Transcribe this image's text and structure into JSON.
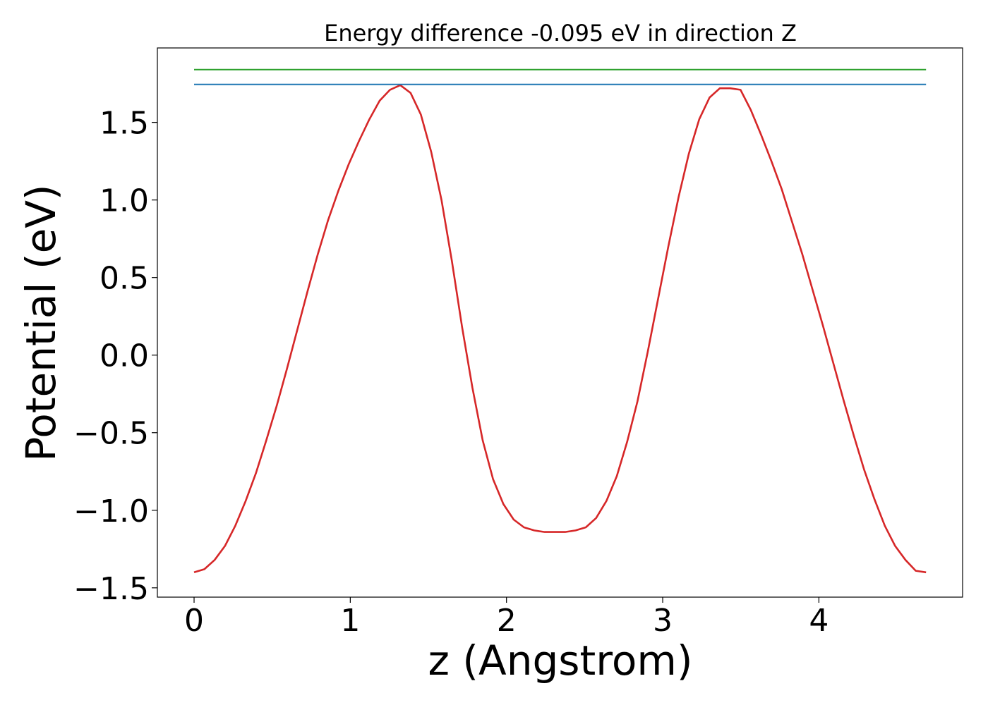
{
  "chart_data": {
    "type": "line",
    "title": "Energy difference -0.095 eV in direction Z",
    "xlabel": "z (Angstrom)",
    "ylabel": "Potential (eV)",
    "xlim": [
      -0.235,
      4.92
    ],
    "ylim": [
      -1.56,
      1.98
    ],
    "xticks": [
      0,
      1,
      2,
      3,
      4
    ],
    "xtick_labels": [
      "0",
      "1",
      "2",
      "3",
      "4"
    ],
    "yticks": [
      -1.5,
      -1.0,
      -0.5,
      0.0,
      0.5,
      1.0,
      1.5
    ],
    "ytick_labels": [
      "−1.5",
      "−1.0",
      "−0.5",
      "0.0",
      "0.5",
      "1.0",
      "1.5"
    ],
    "grid": false,
    "legend": "none",
    "series": [
      {
        "color": "#d62728",
        "x": [
          0.0,
          0.066,
          0.132,
          0.198,
          0.264,
          0.33,
          0.396,
          0.462,
          0.528,
          0.594,
          0.66,
          0.726,
          0.792,
          0.858,
          0.924,
          0.99,
          1.056,
          1.122,
          1.188,
          1.254,
          1.32,
          1.386,
          1.452,
          1.518,
          1.584,
          1.65,
          1.716,
          1.782,
          1.848,
          1.914,
          1.98,
          2.046,
          2.112,
          2.178,
          2.244,
          2.31,
          2.376,
          2.442,
          2.508,
          2.574,
          2.64,
          2.706,
          2.772,
          2.838,
          2.904,
          2.97,
          3.036,
          3.102,
          3.168,
          3.234,
          3.3,
          3.366,
          3.432,
          3.498,
          3.564,
          3.63,
          3.696,
          3.762,
          3.828,
          3.894,
          3.96,
          4.026,
          4.092,
          4.158,
          4.224,
          4.29,
          4.356,
          4.422,
          4.488,
          4.554,
          4.62,
          4.686
        ],
        "y": [
          -1.4,
          -1.38,
          -1.32,
          -1.23,
          -1.1,
          -0.94,
          -0.76,
          -0.55,
          -0.33,
          -0.09,
          0.16,
          0.41,
          0.65,
          0.87,
          1.06,
          1.23,
          1.38,
          1.52,
          1.64,
          1.71,
          1.74,
          1.69,
          1.55,
          1.31,
          1.0,
          0.61,
          0.18,
          -0.21,
          -0.55,
          -0.8,
          -0.96,
          -1.06,
          -1.11,
          -1.13,
          -1.14,
          -1.14,
          -1.14,
          -1.13,
          -1.11,
          -1.05,
          -0.94,
          -0.78,
          -0.56,
          -0.3,
          0.02,
          0.36,
          0.7,
          1.02,
          1.3,
          1.52,
          1.66,
          1.72,
          1.72,
          1.71,
          1.58,
          1.42,
          1.25,
          1.07,
          0.86,
          0.65,
          0.42,
          0.19,
          -0.05,
          -0.29,
          -0.52,
          -0.74,
          -0.93,
          -1.1,
          -1.23,
          -1.32,
          -1.39,
          -1.4
        ]
      },
      {
        "color": "#1f77b4",
        "x": [
          0.0,
          4.686
        ],
        "y": [
          1.745,
          1.745
        ]
      },
      {
        "color": "#2ca02c",
        "x": [
          0.0,
          4.686
        ],
        "y": [
          1.84,
          1.84
        ]
      }
    ]
  }
}
